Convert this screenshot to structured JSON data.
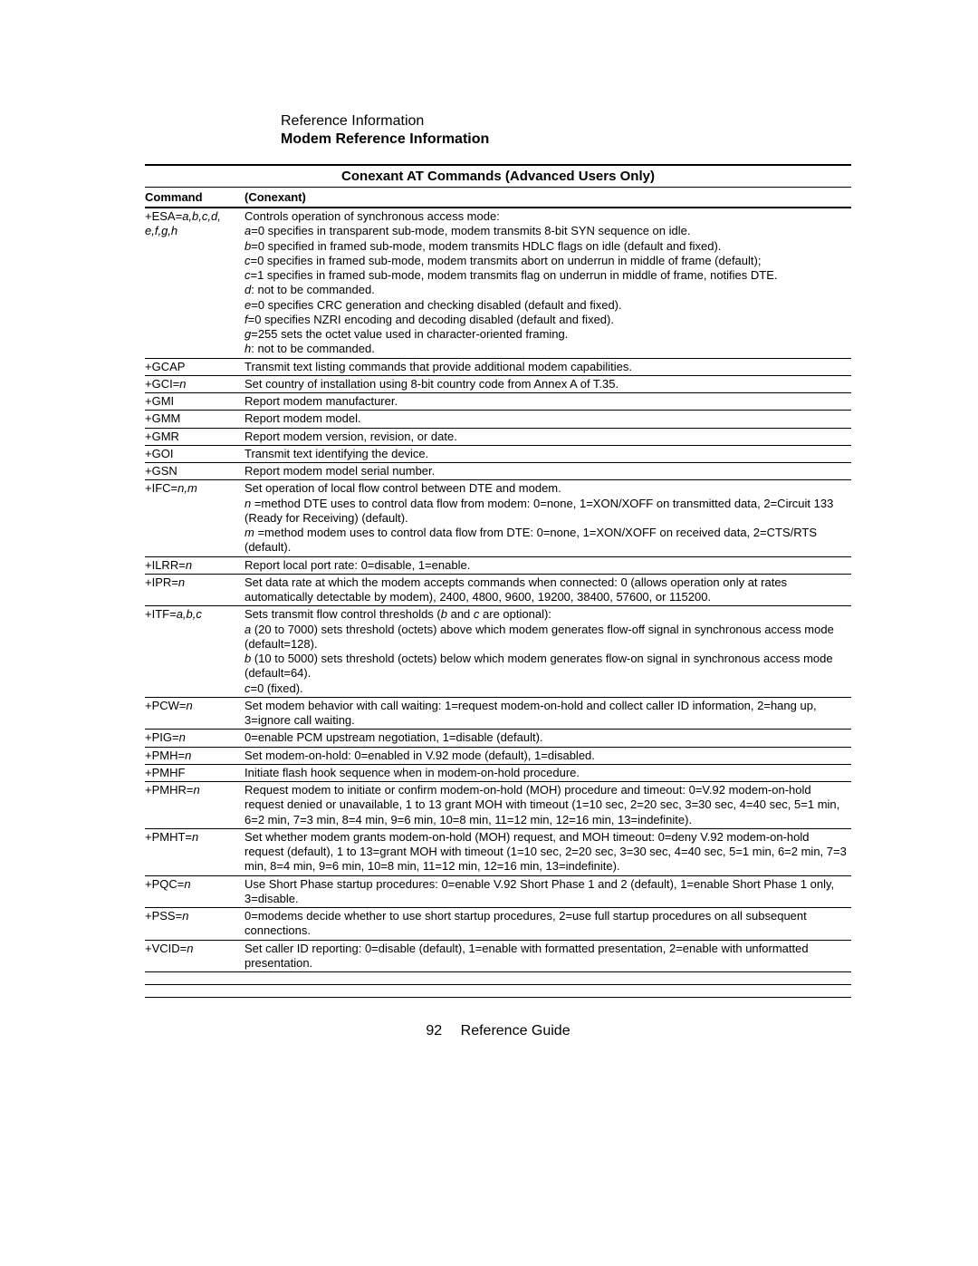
{
  "header": {
    "section": "Reference Information",
    "subsection": "Modem Reference Information"
  },
  "table": {
    "title": "Conexant AT Commands (Advanced Users Only)",
    "columns": [
      "Command",
      "(Conexant)"
    ],
    "rows": [
      {
        "cmd_prefix": "+ESA=",
        "cmd_italic": "a,b,c,d, e,f,g,h",
        "desc": [
          {
            "t": "Controls operation of synchronous access mode:"
          },
          {
            "i": "a",
            "t": "=0 specifies in transparent sub-mode, modem transmits 8-bit SYN sequence on idle."
          },
          {
            "i": "b",
            "t": "=0 specified in framed sub-mode, modem transmits HDLC flags on idle (default and fixed)."
          },
          {
            "i": "c",
            "t": "=0 specifies in framed sub-mode, modem transmits abort on underrun in middle of frame (default);"
          },
          {
            "i": "c",
            "t": "=1 specifies in framed sub-mode, modem transmits flag on underrun in middle of frame, notifies DTE."
          },
          {
            "i": "d",
            "t": ": not to be commanded."
          },
          {
            "i": "e",
            "t": "=0 specifies CRC generation and checking disabled (default and fixed)."
          },
          {
            "i": "f",
            "t": "=0 specifies NZRI encoding and decoding disabled (default and fixed)."
          },
          {
            "i": "g",
            "t": "=255 sets the octet value used in character-oriented framing."
          },
          {
            "i": "h",
            "t": ": not to be commanded."
          }
        ]
      },
      {
        "cmd_prefix": "+GCAP",
        "desc": [
          {
            "t": "Transmit text listing commands that provide additional modem capabilities."
          }
        ]
      },
      {
        "cmd_prefix": "+GCI=",
        "cmd_italic": "n",
        "desc": [
          {
            "t": "Set country of installation using 8-bit country code from Annex A of T.35."
          }
        ]
      },
      {
        "cmd_prefix": "+GMI",
        "desc": [
          {
            "t": "Report modem manufacturer."
          }
        ]
      },
      {
        "cmd_prefix": "+GMM",
        "desc": [
          {
            "t": "Report modem model."
          }
        ]
      },
      {
        "cmd_prefix": "+GMR",
        "desc": [
          {
            "t": "Report modem version, revision, or date."
          }
        ]
      },
      {
        "cmd_prefix": "+GOI",
        "desc": [
          {
            "t": "Transmit text identifying the device."
          }
        ]
      },
      {
        "cmd_prefix": "+GSN",
        "desc": [
          {
            "t": "Report modem model serial number."
          }
        ]
      },
      {
        "cmd_prefix": "+IFC=",
        "cmd_italic": "n,m",
        "desc": [
          {
            "t": "Set operation of local flow control between DTE and modem."
          },
          {
            "i": "n ",
            "t": "=method DTE uses to control data flow from modem: 0=none, 1=XON/XOFF on transmitted data, 2=Circuit 133 (Ready for Receiving) (default)."
          },
          {
            "i": "m ",
            "t": "=method modem uses to control data flow from DTE: 0=none, 1=XON/XOFF on received data, 2=CTS/RTS (default)."
          }
        ]
      },
      {
        "cmd_prefix": "+ILRR=",
        "cmd_italic": "n",
        "desc": [
          {
            "t": "Report local port rate: 0=disable, 1=enable."
          }
        ]
      },
      {
        "cmd_prefix": "+IPR=",
        "cmd_italic": "n",
        "desc": [
          {
            "t": "Set data rate at which the modem accepts commands when connected: 0 (allows operation only at rates automatically detectable by modem), 2400, 4800, 9600, 19200, 38400, 57600, or 115200."
          }
        ]
      },
      {
        "cmd_prefix": "+ITF=",
        "cmd_italic": "a,b,c",
        "desc": [
          {
            "t_pre": "Sets transmit flow control thresholds (",
            "i_inline": "b",
            "t_mid": " and ",
            "i_inline2": "c",
            "t_post": " are optional):"
          },
          {
            "i": "a",
            "t": " (20 to 7000) sets threshold (octets) above which modem generates flow-off signal in synchronous access mode (default=128)."
          },
          {
            "i": "b",
            "t": " (10 to 5000) sets threshold (octets) below which modem generates flow-on signal in synchronous access mode (default=64)."
          },
          {
            "i": "c",
            "t": "=0 (fixed)."
          }
        ]
      },
      {
        "cmd_prefix": "+PCW=",
        "cmd_italic": "n",
        "desc": [
          {
            "t": "Set modem behavior with call waiting: 1=request modem-on-hold and collect caller ID information, 2=hang up, 3=ignore call waiting."
          }
        ]
      },
      {
        "cmd_prefix": "+PIG=",
        "cmd_italic": "n",
        "desc": [
          {
            "t": "0=enable PCM upstream negotiation, 1=disable (default)."
          }
        ]
      },
      {
        "cmd_prefix": "+PMH=",
        "cmd_italic": "n",
        "desc": [
          {
            "t": "Set modem-on-hold: 0=enabled in V.92 mode (default), 1=disabled."
          }
        ]
      },
      {
        "cmd_prefix": "+PMHF",
        "desc": [
          {
            "t": "Initiate flash hook sequence when in modem-on-hold procedure."
          }
        ]
      },
      {
        "cmd_prefix": "+PMHR=",
        "cmd_italic": "n",
        "desc": [
          {
            "t": "Request modem to initiate or confirm modem-on-hold (MOH) procedure and timeout: 0=V.92 modem-on-hold request denied or unavailable, 1 to 13 grant MOH with timeout (1=10 sec, 2=20 sec, 3=30 sec, 4=40 sec, 5=1 min, 6=2 min, 7=3 min, 8=4 min, 9=6 min, 10=8 min, 11=12 min, 12=16 min, 13=indefinite)."
          }
        ]
      },
      {
        "cmd_prefix": "+PMHT=",
        "cmd_italic": "n",
        "desc": [
          {
            "t": "Set whether modem grants modem-on-hold (MOH) request, and MOH timeout: 0=deny V.92 modem-on-hold request (default), 1 to 13=grant MOH with timeout (1=10 sec, 2=20 sec, 3=30 sec, 4=40 sec, 5=1 min, 6=2 min, 7=3 min, 8=4 min, 9=6 min, 10=8 min, 11=12 min, 12=16 min, 13=indefinite)."
          }
        ]
      },
      {
        "cmd_prefix": "+PQC=",
        "cmd_italic": "n",
        "desc": [
          {
            "t": "Use Short Phase startup procedures: 0=enable V.92 Short Phase 1 and 2 (default), 1=enable Short Phase 1 only, 3=disable."
          }
        ]
      },
      {
        "cmd_prefix": "+PSS=",
        "cmd_italic": "n",
        "desc": [
          {
            "t": "0=modems decide whether to use short startup procedures, 2=use full startup procedures on all subsequent connections."
          }
        ]
      },
      {
        "cmd_prefix": "+VCID=",
        "cmd_italic": "n",
        "desc": [
          {
            "t": "Set caller ID reporting: 0=disable (default), 1=enable with formatted presentation, 2=enable with unformatted presentation."
          }
        ]
      }
    ]
  },
  "footer": {
    "page_number": "92",
    "label": "Reference Guide"
  }
}
